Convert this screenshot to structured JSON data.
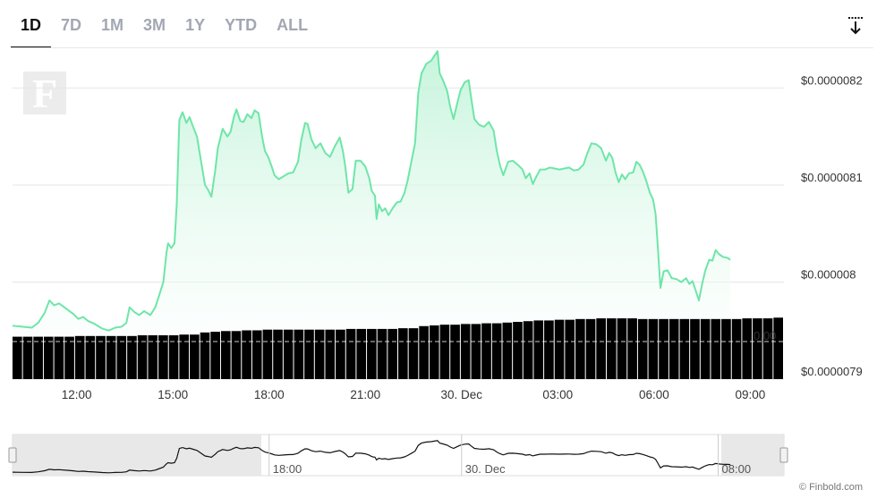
{
  "tabs": [
    {
      "label": "1D",
      "active": true
    },
    {
      "label": "7D",
      "active": false
    },
    {
      "label": "1M",
      "active": false
    },
    {
      "label": "3M",
      "active": false
    },
    {
      "label": "1Y",
      "active": false
    },
    {
      "label": "YTD",
      "active": false
    },
    {
      "label": "ALL",
      "active": false
    }
  ],
  "download_icon": "download-arrow-icon",
  "logo_letter": "F",
  "credit": "© Finbold.com",
  "colors": {
    "line": "#6ee6a8",
    "area_top": "#bff3d8",
    "volume": "#000000",
    "grid": "#e6e6e6"
  },
  "chart_data": {
    "type": "area",
    "price_axis": {
      "ticks": [
        {
          "value": 7.9e-06,
          "label": "$0.0000079"
        },
        {
          "value": 8e-06,
          "label": "$0.000008"
        },
        {
          "value": 8.1e-06,
          "label": "$0.0000081"
        },
        {
          "value": 8.2e-06,
          "label": "$0.0000082"
        }
      ],
      "ylim": [
        7.9e-06,
        8.24e-06
      ],
      "position": "right"
    },
    "volume_axis": {
      "overlay_label": "0.00"
    },
    "x_axis": {
      "ticks": [
        {
          "h": 12,
          "label": "12:00"
        },
        {
          "h": 15,
          "label": "15:00"
        },
        {
          "h": 18,
          "label": "18:00"
        },
        {
          "h": 21,
          "label": "21:00"
        },
        {
          "h": 24,
          "label": "30. Dec"
        },
        {
          "h": 27,
          "label": "03:00"
        },
        {
          "h": 30,
          "label": "06:00"
        },
        {
          "h": 33,
          "label": "09:00"
        }
      ],
      "xlim": [
        10.0,
        34.05
      ]
    },
    "grid": true,
    "series": [
      {
        "points": [
          [
            10.0,
            7.955e-06
          ],
          [
            10.3,
            7.954e-06
          ],
          [
            10.6,
            7.953e-06
          ],
          [
            10.8,
            7.958e-06
          ],
          [
            11.0,
            7.968e-06
          ],
          [
            11.15,
            7.981e-06
          ],
          [
            11.3,
            7.976e-06
          ],
          [
            11.45,
            7.978e-06
          ],
          [
            11.7,
            7.972e-06
          ],
          [
            11.9,
            7.967e-06
          ],
          [
            12.05,
            7.962e-06
          ],
          [
            12.2,
            7.964e-06
          ],
          [
            12.35,
            7.96e-06
          ],
          [
            12.55,
            7.957e-06
          ],
          [
            12.8,
            7.952e-06
          ],
          [
            13.0,
            7.95e-06
          ],
          [
            13.2,
            7.953e-06
          ],
          [
            13.4,
            7.954e-06
          ],
          [
            13.55,
            7.958e-06
          ],
          [
            13.65,
            7.974e-06
          ],
          [
            13.8,
            7.969e-06
          ],
          [
            13.95,
            7.966e-06
          ],
          [
            14.1,
            7.97e-06
          ],
          [
            14.3,
            7.966e-06
          ],
          [
            14.45,
            7.974e-06
          ],
          [
            14.55,
            7.984e-06
          ],
          [
            14.7,
            8e-06
          ],
          [
            14.8,
            8.03e-06
          ],
          [
            14.85,
            8.04e-06
          ],
          [
            14.95,
            8.035e-06
          ],
          [
            15.05,
            8.04e-06
          ],
          [
            15.12,
            8.08e-06
          ],
          [
            15.2,
            8.167e-06
          ],
          [
            15.3,
            8.175e-06
          ],
          [
            15.42,
            8.164e-06
          ],
          [
            15.52,
            8.17e-06
          ],
          [
            15.63,
            8.16e-06
          ],
          [
            15.75,
            8.15e-06
          ],
          [
            15.85,
            8.13e-06
          ],
          [
            16.0,
            8.1e-06
          ],
          [
            16.1,
            8.095e-06
          ],
          [
            16.2,
            8.088e-06
          ],
          [
            16.32,
            8.115e-06
          ],
          [
            16.4,
            8.138e-06
          ],
          [
            16.55,
            8.158e-06
          ],
          [
            16.7,
            8.15e-06
          ],
          [
            16.8,
            8.155e-06
          ],
          [
            16.9,
            8.17e-06
          ],
          [
            16.98,
            8.178e-06
          ],
          [
            17.1,
            8.166e-06
          ],
          [
            17.2,
            8.165e-06
          ],
          [
            17.32,
            8.173e-06
          ],
          [
            17.45,
            8.169e-06
          ],
          [
            17.55,
            8.177e-06
          ],
          [
            17.67,
            8.174e-06
          ],
          [
            17.78,
            8.15e-06
          ],
          [
            17.87,
            8.135e-06
          ],
          [
            17.97,
            8.129e-06
          ],
          [
            18.07,
            8.12e-06
          ],
          [
            18.17,
            8.11e-06
          ],
          [
            18.3,
            8.106e-06
          ],
          [
            18.45,
            8.109e-06
          ],
          [
            18.6,
            8.112e-06
          ],
          [
            18.75,
            8.113e-06
          ],
          [
            18.9,
            8.124e-06
          ],
          [
            19.0,
            8.146e-06
          ],
          [
            19.12,
            8.164e-06
          ],
          [
            19.2,
            8.163e-06
          ],
          [
            19.32,
            8.147e-06
          ],
          [
            19.45,
            8.138e-06
          ],
          [
            19.6,
            8.143e-06
          ],
          [
            19.75,
            8.133e-06
          ],
          [
            19.9,
            8.129e-06
          ],
          [
            20.05,
            8.14e-06
          ],
          [
            20.2,
            8.149e-06
          ],
          [
            20.3,
            8.135e-06
          ],
          [
            20.37,
            8.12e-06
          ],
          [
            20.47,
            8.092e-06
          ],
          [
            20.6,
            8.096e-06
          ],
          [
            20.7,
            8.125e-06
          ],
          [
            20.85,
            8.125e-06
          ],
          [
            21.0,
            8.119e-06
          ],
          [
            21.12,
            8.107e-06
          ],
          [
            21.2,
            8.094e-06
          ],
          [
            21.3,
            8.089e-06
          ],
          [
            21.35,
            8.065e-06
          ],
          [
            21.42,
            8.08e-06
          ],
          [
            21.52,
            8.073e-06
          ],
          [
            21.62,
            8.076e-06
          ],
          [
            21.72,
            8.069e-06
          ],
          [
            21.85,
            8.076e-06
          ],
          [
            21.98,
            8.082e-06
          ],
          [
            22.1,
            8.083e-06
          ],
          [
            22.22,
            8.092e-06
          ],
          [
            22.32,
            8.105e-06
          ],
          [
            22.42,
            8.122e-06
          ],
          [
            22.55,
            8.143e-06
          ],
          [
            22.65,
            8.195e-06
          ],
          [
            22.75,
            8.215e-06
          ],
          [
            22.9,
            8.225e-06
          ],
          [
            23.05,
            8.228e-06
          ],
          [
            23.15,
            8.233e-06
          ],
          [
            23.25,
            8.238e-06
          ],
          [
            23.32,
            8.215e-06
          ],
          [
            23.42,
            8.208e-06
          ],
          [
            23.55,
            8.197e-06
          ],
          [
            23.65,
            8.18e-06
          ],
          [
            23.75,
            8.168e-06
          ],
          [
            23.87,
            8.185e-06
          ],
          [
            23.97,
            8.198e-06
          ],
          [
            24.1,
            8.206e-06
          ],
          [
            24.22,
            8.208e-06
          ],
          [
            24.3,
            8.19e-06
          ],
          [
            24.4,
            8.168e-06
          ],
          [
            24.55,
            8.162e-06
          ],
          [
            24.7,
            8.16e-06
          ],
          [
            24.85,
            8.165e-06
          ],
          [
            25.0,
            8.156e-06
          ],
          [
            25.1,
            8.135e-06
          ],
          [
            25.2,
            8.12e-06
          ],
          [
            25.3,
            8.11e-06
          ],
          [
            25.45,
            8.124e-06
          ],
          [
            25.6,
            8.125e-06
          ],
          [
            25.75,
            8.121e-06
          ],
          [
            25.9,
            8.116e-06
          ],
          [
            26.0,
            8.107e-06
          ],
          [
            26.12,
            8.112e-06
          ],
          [
            26.22,
            8.101e-06
          ],
          [
            26.32,
            8.108e-06
          ],
          [
            26.45,
            8.116e-06
          ],
          [
            26.6,
            8.116e-06
          ],
          [
            26.75,
            8.118e-06
          ],
          [
            26.9,
            8.117e-06
          ],
          [
            27.05,
            8.116e-06
          ],
          [
            27.2,
            8.117e-06
          ],
          [
            27.35,
            8.118e-06
          ],
          [
            27.5,
            8.115e-06
          ],
          [
            27.65,
            8.116e-06
          ],
          [
            27.8,
            8.121e-06
          ],
          [
            27.9,
            8.131e-06
          ],
          [
            28.05,
            8.143e-06
          ],
          [
            28.2,
            8.142e-06
          ],
          [
            28.35,
            8.138e-06
          ],
          [
            28.5,
            8.125e-06
          ],
          [
            28.6,
            8.133e-06
          ],
          [
            28.7,
            8.128e-06
          ],
          [
            28.8,
            8.113e-06
          ],
          [
            28.9,
            8.103e-06
          ],
          [
            29.0,
            8.111e-06
          ],
          [
            29.1,
            8.106e-06
          ],
          [
            29.22,
            8.112e-06
          ],
          [
            29.35,
            8.113e-06
          ],
          [
            29.45,
            8.124e-06
          ],
          [
            29.55,
            8.121e-06
          ],
          [
            29.65,
            8.114e-06
          ],
          [
            29.75,
            8.105e-06
          ],
          [
            29.87,
            8.092e-06
          ],
          [
            29.97,
            8.085e-06
          ],
          [
            30.05,
            8.07e-06
          ],
          [
            30.12,
            8.036e-06
          ],
          [
            30.2,
            7.994e-06
          ],
          [
            30.3,
            8.011e-06
          ],
          [
            30.42,
            8.012e-06
          ],
          [
            30.55,
            8.004e-06
          ],
          [
            30.7,
            8.003e-06
          ],
          [
            30.85,
            8e-06
          ],
          [
            31.0,
            8.004e-06
          ],
          [
            31.1,
            7.998e-06
          ],
          [
            31.2,
            8.001e-06
          ],
          [
            31.32,
            7.989e-06
          ],
          [
            31.4,
            7.981e-06
          ],
          [
            31.5,
            7.998e-06
          ],
          [
            31.6,
            8.012e-06
          ],
          [
            31.72,
            8.023e-06
          ],
          [
            31.82,
            8.022e-06
          ],
          [
            31.92,
            8.033e-06
          ],
          [
            32.02,
            8.029e-06
          ],
          [
            32.15,
            8.026e-06
          ],
          [
            32.28,
            8.025e-06
          ],
          [
            32.38,
            8.023e-06
          ]
        ]
      }
    ],
    "volume": {
      "bar_count": 74,
      "levels": [
        0.6,
        0.6,
        0.6,
        0.6,
        0.6,
        0.6,
        0.61,
        0.61,
        0.61,
        0.61,
        0.61,
        0.61,
        0.62,
        0.62,
        0.62,
        0.62,
        0.63,
        0.63,
        0.66,
        0.67,
        0.68,
        0.68,
        0.69,
        0.69,
        0.7,
        0.7,
        0.7,
        0.7,
        0.7,
        0.7,
        0.7,
        0.7,
        0.71,
        0.71,
        0.71,
        0.71,
        0.71,
        0.72,
        0.72,
        0.75,
        0.76,
        0.77,
        0.77,
        0.78,
        0.78,
        0.79,
        0.79,
        0.8,
        0.81,
        0.82,
        0.83,
        0.83,
        0.84,
        0.84,
        0.85,
        0.85,
        0.86,
        0.86,
        0.86,
        0.86,
        0.85,
        0.85,
        0.85,
        0.85,
        0.85,
        0.85,
        0.85,
        0.85,
        0.85,
        0.85,
        0.86,
        0.86,
        0.86,
        0.87
      ]
    }
  },
  "navigator": {
    "labels": [
      {
        "h": 18,
        "label": "18:00"
      },
      {
        "h": 24,
        "label": "30. Dec"
      },
      {
        "h": 32,
        "label": "08:00"
      }
    ]
  }
}
